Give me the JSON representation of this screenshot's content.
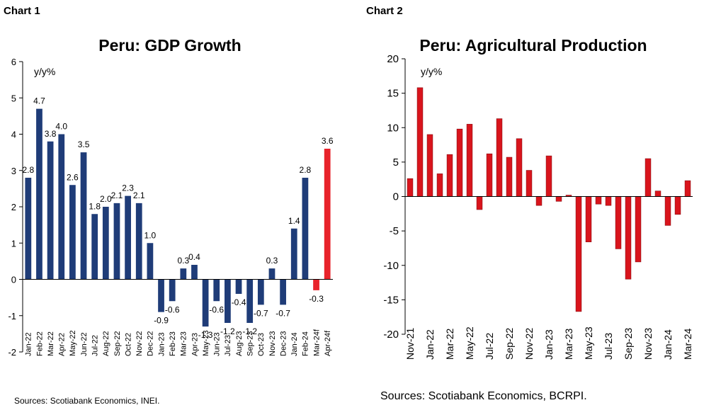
{
  "chart_data": [
    {
      "type": "bar",
      "heading": "Chart 1",
      "title": "Peru: GDP Growth",
      "y_label": "y/y%",
      "categories": [
        "Jan-22",
        "Feb-22",
        "Mar-22",
        "Apr-22",
        "May-22",
        "Jun-22",
        "Jul-22",
        "Aug-22",
        "Sep-22",
        "Oct-22",
        "Nov-22",
        "Dec-22",
        "Jan-23",
        "Feb-23",
        "Mar-23",
        "Apr-23",
        "May-23",
        "Jun-23",
        "Jul-23",
        "Aug-23",
        "Sep-23",
        "Oct-23",
        "Nov-23",
        "Dec-23",
        "Jan-24",
        "Feb-24",
        "Mar-24f",
        "Apr-24f"
      ],
      "values": [
        2.8,
        4.7,
        3.8,
        4.0,
        2.6,
        3.5,
        1.8,
        2.0,
        2.1,
        2.3,
        2.1,
        1.0,
        -0.9,
        -0.6,
        0.3,
        0.4,
        -1.3,
        -0.6,
        -1.2,
        -0.4,
        -1.2,
        -0.7,
        0.3,
        -0.7,
        1.4,
        2.8,
        -0.3,
        3.6
      ],
      "value_labels": [
        "2.8",
        "4.7",
        "3.8",
        "4.0",
        "2.6",
        "3.5",
        "1.8",
        "2.0",
        "2.1",
        "2.3",
        "2.1",
        "1.0",
        "-0.9",
        "-0.6",
        "0.3",
        "0.4",
        "-1.3",
        "-0.6",
        "-1.2",
        "-0.4",
        "-1.2",
        "-0.7",
        "0.3",
        "-0.7",
        "1.4",
        "2.8",
        "-0.3",
        "3.6"
      ],
      "colors": [
        "#1f3c78",
        "#1f3c78",
        "#1f3c78",
        "#1f3c78",
        "#1f3c78",
        "#1f3c78",
        "#1f3c78",
        "#1f3c78",
        "#1f3c78",
        "#1f3c78",
        "#1f3c78",
        "#1f3c78",
        "#1f3c78",
        "#1f3c78",
        "#1f3c78",
        "#1f3c78",
        "#1f3c78",
        "#1f3c78",
        "#1f3c78",
        "#1f3c78",
        "#1f3c78",
        "#1f3c78",
        "#1f3c78",
        "#1f3c78",
        "#1f3c78",
        "#1f3c78",
        "#e8232b",
        "#e8232b"
      ],
      "ylim": [
        -2,
        6
      ],
      "yticks": [
        -2,
        -1,
        0,
        1,
        2,
        3,
        4,
        5,
        6
      ],
      "source": "Sources: Scotiabank Economics, INEI."
    },
    {
      "type": "bar",
      "heading": "Chart 2",
      "title": "Peru: Agricultural Production",
      "y_label": "y/y%",
      "categories": [
        "Nov-21",
        null,
        "Jan-22",
        null,
        "Mar-22",
        null,
        "May-22",
        null,
        "Jul-22",
        null,
        "Sep-22",
        null,
        "Nov-22",
        null,
        "Jan-23",
        null,
        "Mar-23",
        null,
        "May-23",
        null,
        "Jul-23",
        null,
        "Sep-23",
        null,
        "Nov-23",
        null,
        "Jan-24",
        null,
        "Mar-24"
      ],
      "values": [
        2.6,
        15.8,
        9.0,
        3.3,
        6.1,
        9.8,
        10.5,
        -1.9,
        6.2,
        11.3,
        5.7,
        8.4,
        3.8,
        -1.3,
        5.9,
        -0.7,
        0.2,
        -16.7,
        -6.6,
        -1.1,
        -1.3,
        -7.6,
        -12.0,
        -9.5,
        5.5,
        0.8,
        -4.2,
        -2.6,
        2.3
      ],
      "color": "#d9141c",
      "ylim": [
        -20,
        20
      ],
      "yticks": [
        -20,
        -15,
        -10,
        -5,
        0,
        5,
        10,
        15,
        20
      ],
      "source": "Sources: Scotiabank Economics, BCRPI."
    }
  ]
}
